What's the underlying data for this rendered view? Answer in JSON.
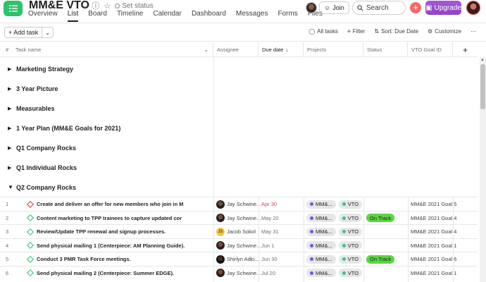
{
  "header": {
    "title": "MM&E VTO",
    "set_status": "Set status",
    "join_label": "Join",
    "search_placeholder": "Search",
    "upgrade_label": "Upgrade",
    "tabs": [
      "Overview",
      "List",
      "Board",
      "Timeline",
      "Calendar",
      "Dashboard",
      "Messages",
      "Forms",
      "Files"
    ],
    "active_tab": "List"
  },
  "toolbar": {
    "add_task_label": "Add task",
    "all_tasks": "All tasks",
    "filter": "Filter",
    "sort": "Sort: Due Date",
    "customize": "Customize"
  },
  "columns": {
    "number": "#",
    "task_name": "Task name",
    "assignee": "Assignee",
    "due_date": "Due date",
    "projects": "Projects",
    "status": "Status",
    "vto_goal_id": "VTO Goal ID"
  },
  "sections": [
    {
      "label": "Marketing Strategy",
      "expanded": false
    },
    {
      "label": "3 Year Picture",
      "expanded": false
    },
    {
      "label": "Measurables",
      "expanded": false
    },
    {
      "label": "1 Year Plan (MM&E Goals for 2021)",
      "expanded": false
    },
    {
      "label": "Q1 Company Rocks",
      "expanded": false
    },
    {
      "label": "Q1 Individual Rocks",
      "expanded": false
    },
    {
      "label": "Q2 Company Rocks",
      "expanded": true
    }
  ],
  "tasks": [
    {
      "num": "1",
      "name": "Create and deliver an offer for new members who join in M",
      "assignee": "Jay Schwine...",
      "avatar": "photo",
      "due": "Apr 30",
      "overdue": true,
      "project": "MM&...",
      "vto": "VTO",
      "status": "",
      "goal": "MM&E 2021 Goal 5",
      "milestone": true
    },
    {
      "num": "2",
      "name": "Content marketing to TPP trainees to capture updated cor",
      "assignee": "Jay Schwine...",
      "avatar": "photo",
      "due": "May 20",
      "overdue": false,
      "project": "MM&...",
      "vto": "VTO",
      "status": "On Track",
      "goal": "MM&E 2021 Goal 4",
      "milestone": false
    },
    {
      "num": "3",
      "name": "Review/Update TPP renewal and signup processes.",
      "assignee": "Jacob Sokol",
      "avatar": "JS",
      "due": "May 31",
      "overdue": false,
      "project": "MM&...",
      "vto": "VTO",
      "status": "",
      "goal": "MM&E 2021 Goal 4",
      "milestone": false
    },
    {
      "num": "4",
      "name": "Send physical mailing 1 (Centerpiece: AM Planning Guide).",
      "assignee": "Jay Schwine...",
      "avatar": "photo",
      "due": "Jun 1",
      "overdue": false,
      "project": "MM&...",
      "vto": "VTO",
      "status": "",
      "goal": "MM&E 2021 Goal 1",
      "milestone": false
    },
    {
      "num": "5",
      "name": "Conduct 3 PMR Task Force meetings.",
      "assignee": "Shirlyn Adki...",
      "avatar": "photo2",
      "due": "Jun 30",
      "overdue": false,
      "project": "MM&...",
      "vto": "VTO",
      "status": "On Track",
      "goal": "MM&E 2021 Goal 6",
      "milestone": false
    },
    {
      "num": "6",
      "name": "Send physical mailing 2 (Centerpiece: Summer EDGE).",
      "assignee": "Jay Schwine...",
      "avatar": "photo",
      "due": "Jul 20",
      "overdue": false,
      "project": "MM&...",
      "vto": "VTO",
      "status": "",
      "goal": "MM&E 2021 Goal 1",
      "milestone": false
    }
  ],
  "colors": {
    "brand_green": "#2ec26a",
    "upgrade_purple": "#9b4dca",
    "on_track_green": "#5bd642",
    "overdue_red": "#e8384f",
    "project_dot_purple": "#6a5ae0",
    "vto_dot_green": "#3cc47c"
  }
}
